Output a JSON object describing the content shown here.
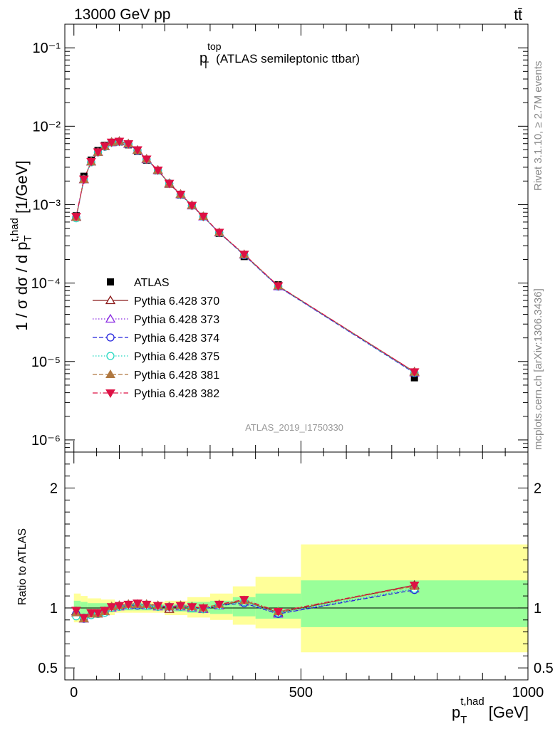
{
  "header": {
    "energy_label": "13000 GeV pp",
    "process_label": "tt̄"
  },
  "side_text": {
    "rivet": "Rivet 3.1.10, ≥ 2.7M events",
    "mcplots": "mcplots.cern.ch [arXiv:1306.3436]"
  },
  "analysis_id": "ATLAS_2019_I1750330",
  "chart_data": [
    {
      "type": "scatter",
      "title_main": "p",
      "title_sup": "top",
      "title_sub": "T",
      "title_rest": "(ATLAS semileptonic ttbar)",
      "ylabel": "1 / σ dσ / d p_T^{t,had} [1/GeV]",
      "ylabel_parts": {
        "lead": "1 / σ dσ / d p",
        "sub": "T",
        "sup": "t,had",
        "tail": "[1/GeV]"
      },
      "yscale": "log",
      "ylim": [
        7e-07,
        0.2
      ],
      "xlim": [
        -20,
        1000
      ],
      "y_tick_labels": [
        "10⁻¹",
        "10⁻²",
        "10⁻³",
        "10⁻⁴",
        "10⁻⁵",
        "10⁻⁶"
      ],
      "y_tick_exponents": [
        -1,
        -2,
        -3,
        -4,
        -5,
        -6
      ],
      "legend_position": "left-middle",
      "data": {
        "name": "ATLAS",
        "x": [
          5,
          22,
          38,
          53,
          68,
          83,
          100,
          120,
          140,
          160,
          185,
          210,
          235,
          260,
          285,
          320,
          375,
          450,
          750
        ],
        "y": [
          0.00072,
          0.0023,
          0.0037,
          0.0049,
          0.0057,
          0.0062,
          0.0063,
          0.0058,
          0.0048,
          0.0037,
          0.0027,
          0.00185,
          0.00133,
          0.00097,
          0.00071,
          0.00043,
          0.000218,
          9.5e-05,
          6.2e-06
        ]
      },
      "series": [
        {
          "name": "Pythia 6.428 370",
          "color": "#8b1a1a",
          "marker": "open-triangle-up",
          "dash": "solid",
          "ratio": [
            0.97,
            0.91,
            0.95,
            0.95,
            0.97,
            1.01,
            1.02,
            1.03,
            1.03,
            1.03,
            1.02,
            0.99,
            1.02,
            1.01,
            0.99,
            1.02,
            1.06,
            0.96,
            1.19
          ]
        },
        {
          "name": "Pythia 6.428 373",
          "color": "#8a2be2",
          "marker": "open-triangle-up",
          "dash": "dotted",
          "ratio": [
            0.96,
            0.91,
            0.95,
            0.95,
            0.97,
            1.0,
            1.01,
            1.02,
            1.03,
            1.02,
            1.01,
            1.01,
            1.01,
            1.0,
            0.99,
            1.02,
            1.05,
            0.95,
            1.16
          ]
        },
        {
          "name": "Pythia 6.428 374",
          "color": "#2222dd",
          "marker": "open-circle",
          "dash": "dashed",
          "ratio": [
            0.95,
            0.91,
            0.94,
            0.95,
            0.96,
            1.0,
            1.01,
            1.02,
            1.02,
            1.02,
            1.01,
            1.01,
            1.01,
            1.0,
            0.99,
            1.02,
            1.04,
            0.95,
            1.15
          ]
        },
        {
          "name": "Pythia 6.428 375",
          "color": "#20d8c0",
          "marker": "open-circle",
          "dash": "dotted",
          "ratio": [
            0.93,
            0.92,
            0.94,
            0.95,
            0.96,
            1.0,
            1.01,
            1.02,
            1.03,
            1.02,
            1.01,
            1.01,
            1.01,
            1.0,
            0.99,
            1.02,
            1.05,
            0.96,
            1.16
          ]
        },
        {
          "name": "Pythia 6.428 381",
          "color": "#b07840",
          "marker": "filled-triangle-up",
          "dash": "dashed",
          "ratio": [
            0.96,
            0.91,
            0.95,
            0.95,
            0.97,
            1.01,
            1.02,
            1.03,
            1.03,
            1.03,
            1.02,
            1.01,
            1.02,
            1.01,
            1.0,
            1.03,
            1.06,
            0.97,
            1.18
          ]
        },
        {
          "name": "Pythia 6.428 382",
          "color": "#dd1144",
          "marker": "filled-triangle-down",
          "dash": "dashdot",
          "ratio": [
            0.98,
            0.92,
            0.96,
            0.96,
            0.98,
            1.01,
            1.02,
            1.03,
            1.04,
            1.03,
            1.02,
            1.01,
            1.02,
            1.01,
            1.0,
            1.03,
            1.07,
            0.97,
            1.19
          ]
        }
      ]
    },
    {
      "type": "area",
      "ylabel": "Ratio to ATLAS",
      "xlabel_parts": {
        "lead": "p",
        "sub": "T",
        "sup": "t,had",
        "tail": "[GeV]"
      },
      "xlim": [
        -20,
        1000
      ],
      "ylim": [
        0.4,
        2.3
      ],
      "y_ticks": [
        0.5,
        1,
        2
      ],
      "y_tick_labels": [
        "0.5",
        "1",
        "2"
      ],
      "x_ticks": [
        0,
        500,
        1000
      ],
      "x_tick_labels": [
        "0",
        "500",
        "1000"
      ],
      "bands": [
        {
          "x0": 0,
          "x1": 15,
          "y1_lo": 0.94,
          "y1_hi": 1.06,
          "y2_lo": 0.88,
          "y2_hi": 1.12
        },
        {
          "x0": 15,
          "x1": 30,
          "y1_lo": 0.95,
          "y1_hi": 1.05,
          "y2_lo": 0.9,
          "y2_hi": 1.1
        },
        {
          "x0": 30,
          "x1": 60,
          "y1_lo": 0.96,
          "y1_hi": 1.04,
          "y2_lo": 0.92,
          "y2_hi": 1.08
        },
        {
          "x0": 60,
          "x1": 90,
          "y1_lo": 0.97,
          "y1_hi": 1.04,
          "y2_lo": 0.94,
          "y2_hi": 1.07
        },
        {
          "x0": 90,
          "x1": 130,
          "y1_lo": 0.98,
          "y1_hi": 1.03,
          "y2_lo": 0.96,
          "y2_hi": 1.05
        },
        {
          "x0": 130,
          "x1": 200,
          "y1_lo": 0.98,
          "y1_hi": 1.03,
          "y2_lo": 0.96,
          "y2_hi": 1.05
        },
        {
          "x0": 200,
          "x1": 250,
          "y1_lo": 0.97,
          "y1_hi": 1.03,
          "y2_lo": 0.94,
          "y2_hi": 1.06
        },
        {
          "x0": 250,
          "x1": 300,
          "y1_lo": 0.96,
          "y1_hi": 1.05,
          "y2_lo": 0.92,
          "y2_hi": 1.09
        },
        {
          "x0": 300,
          "x1": 350,
          "y1_lo": 0.95,
          "y1_hi": 1.06,
          "y2_lo": 0.9,
          "y2_hi": 1.12
        },
        {
          "x0": 350,
          "x1": 400,
          "y1_lo": 0.93,
          "y1_hi": 1.09,
          "y2_lo": 0.86,
          "y2_hi": 1.18
        },
        {
          "x0": 400,
          "x1": 500,
          "y1_lo": 0.91,
          "y1_hi": 1.12,
          "y2_lo": 0.83,
          "y2_hi": 1.26
        },
        {
          "x0": 500,
          "x1": 1000,
          "y1_lo": 0.84,
          "y1_hi": 1.23,
          "y2_lo": 0.63,
          "y2_hi": 1.53
        }
      ],
      "band_colors": {
        "inner": "#99ff99",
        "outer": "#ffff99"
      }
    }
  ]
}
